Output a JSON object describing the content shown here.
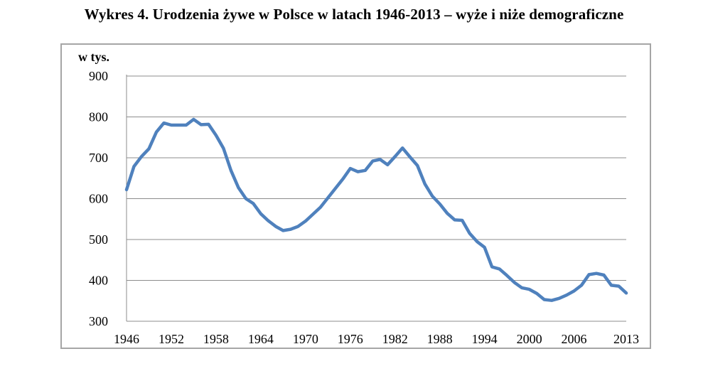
{
  "title": "Wykres 4. Urodzenia żywe w Polsce w latach 1946-2013 – wyże i niże demograficzne",
  "chart_data": {
    "type": "line",
    "title": "Wykres 4. Urodzenia żywe w Polsce w latach 1946-2013 – wyże i niże demograficzne",
    "ylabel": "w tys.",
    "xlabel": "",
    "ylim": [
      300,
      900
    ],
    "xlim": [
      1946,
      2013
    ],
    "grid": "horizontal",
    "line_color": "#4f81bd",
    "y_ticks": [
      "300",
      "400",
      "500",
      "600",
      "700",
      "800",
      "900"
    ],
    "x_ticks": [
      1946,
      1952,
      1958,
      1964,
      1970,
      1976,
      1982,
      1988,
      1994,
      2000,
      2006,
      2013
    ],
    "x_tick_labels": [
      "1946",
      "1952",
      "1958",
      "1964",
      "1970",
      "1976",
      "1982",
      "1988",
      "1994",
      "2000",
      "2006",
      "2013"
    ],
    "series": [
      {
        "x": [
          1946,
          1947,
          1948,
          1949,
          1950,
          1951,
          1952,
          1953,
          1954,
          1955,
          1956,
          1957,
          1958,
          1959,
          1960,
          1961,
          1962,
          1963,
          1964,
          1965,
          1966,
          1967,
          1968,
          1969,
          1970,
          1971,
          1972,
          1973,
          1974,
          1975,
          1976,
          1977,
          1978,
          1979,
          1980,
          1981,
          1982,
          1983,
          1984,
          1985,
          1986,
          1987,
          1988,
          1989,
          1990,
          1991,
          1992,
          1993,
          1994,
          1995,
          1996,
          1997,
          1998,
          1999,
          2000,
          2001,
          2002,
          2003,
          2004,
          2005,
          2006,
          2007,
          2008,
          2009,
          2010,
          2011,
          2012,
          2013
        ],
        "values": [
          622,
          679,
          703,
          722,
          763,
          785,
          780,
          780,
          780,
          794,
          781,
          782,
          755,
          723,
          669,
          627,
          600,
          588,
          563,
          546,
          532,
          522,
          525,
          532,
          545,
          562,
          579,
          602,
          625,
          648,
          674,
          666,
          669,
          692,
          696,
          683,
          703,
          724,
          702,
          681,
          636,
          606,
          587,
          564,
          548,
          547,
          515,
          495,
          481,
          433,
          428,
          412,
          395,
          382,
          378,
          368,
          353,
          351,
          356,
          364,
          374,
          388,
          414,
          417,
          413,
          388,
          386,
          369
        ]
      }
    ]
  }
}
